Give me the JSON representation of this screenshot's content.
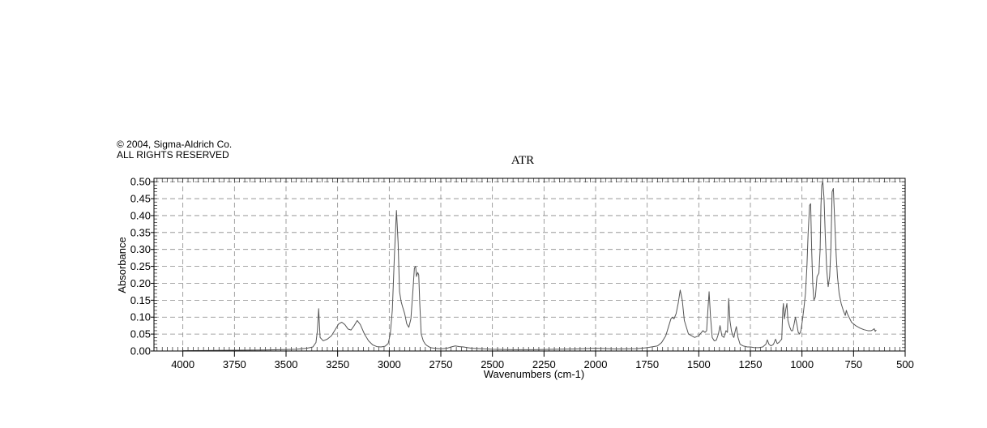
{
  "copyright": {
    "line1": "© 2004, Sigma-Aldrich Co.",
    "line2": "ALL RIGHTS RESERVED"
  },
  "chart_data": {
    "type": "line",
    "title": "ATR",
    "xlabel": "Wavenumbers (cm-1)",
    "ylabel": "Absorbance",
    "xlim": [
      4140,
      500
    ],
    "ylim": [
      0,
      0.51
    ],
    "x_reversed": true,
    "grid": true,
    "x_ticks": [
      4000,
      3750,
      3500,
      3250,
      3000,
      2750,
      2500,
      2250,
      2000,
      1750,
      1500,
      1250,
      1000,
      750,
      500
    ],
    "x_tick_labels": [
      "4000",
      "3750",
      "3500",
      "3250",
      "3000",
      "2750",
      "2500",
      "2250",
      "2000",
      "1750",
      "1500",
      "1250",
      "1000",
      "750",
      "500"
    ],
    "y_ticks": [
      0,
      0.05,
      0.1,
      0.15,
      0.2,
      0.25,
      0.3,
      0.35,
      0.4,
      0.45,
      0.5
    ],
    "y_tick_labels": [
      "0.00",
      "0.05",
      "0.10",
      "0.15",
      "0.20",
      "0.25",
      "0.30",
      "0.35",
      "0.40",
      "0.45",
      "0.50"
    ],
    "line_color": "#555555",
    "series": [
      {
        "x": [
          4000,
          3800,
          3600,
          3450,
          3400,
          3370,
          3355,
          3348,
          3342,
          3335,
          3320,
          3300,
          3280,
          3260,
          3245,
          3230,
          3215,
          3200,
          3185,
          3170,
          3155,
          3140,
          3120,
          3100,
          3080,
          3060,
          3040,
          3020,
          3005,
          2995,
          2985,
          2975,
          2965,
          2957,
          2950,
          2942,
          2935,
          2925,
          2915,
          2905,
          2895,
          2885,
          2878,
          2872,
          2868,
          2862,
          2857,
          2852,
          2845,
          2835,
          2825,
          2815,
          2800,
          2780,
          2760,
          2740,
          2720,
          2700,
          2680,
          2660,
          2640,
          2620,
          2600,
          2500,
          2400,
          2300,
          2200,
          2100,
          2000,
          1900,
          1800,
          1750,
          1700,
          1680,
          1660,
          1645,
          1635,
          1628,
          1620,
          1610,
          1600,
          1590,
          1580,
          1570,
          1550,
          1520,
          1500,
          1480,
          1470,
          1462,
          1456,
          1450,
          1443,
          1435,
          1425,
          1415,
          1405,
          1397,
          1388,
          1378,
          1368,
          1361,
          1355,
          1349,
          1342,
          1335,
          1330,
          1325,
          1318,
          1310,
          1300,
          1285,
          1265,
          1250,
          1230,
          1210,
          1190,
          1175,
          1168,
          1160,
          1150,
          1138,
          1128,
          1120,
          1112,
          1105,
          1098,
          1093,
          1090,
          1085,
          1078,
          1073,
          1068,
          1060,
          1052,
          1045,
          1038,
          1032,
          1025,
          1018,
          1012,
          1005,
          998,
          990,
          983,
          976,
          970,
          963,
          958,
          953,
          948,
          942,
          935,
          927,
          918,
          912,
          908,
          904,
          899,
          893,
          887,
          880,
          873,
          866,
          860,
          854,
          848,
          841,
          834,
          828,
          820,
          810,
          800,
          790,
          785,
          780,
          772,
          760,
          740,
          720,
          700,
          680,
          665,
          655,
          650,
          645,
          640
        ],
        "y": [
          0.001,
          0.002,
          0.003,
          0.005,
          0.008,
          0.012,
          0.025,
          0.06,
          0.125,
          0.04,
          0.03,
          0.035,
          0.045,
          0.065,
          0.08,
          0.085,
          0.078,
          0.065,
          0.062,
          0.075,
          0.09,
          0.078,
          0.05,
          0.03,
          0.018,
          0.013,
          0.012,
          0.014,
          0.022,
          0.05,
          0.12,
          0.28,
          0.415,
          0.32,
          0.175,
          0.145,
          0.13,
          0.11,
          0.08,
          0.07,
          0.095,
          0.18,
          0.245,
          0.25,
          0.22,
          0.232,
          0.225,
          0.14,
          0.05,
          0.03,
          0.02,
          0.015,
          0.01,
          0.008,
          0.007,
          0.007,
          0.008,
          0.012,
          0.015,
          0.013,
          0.012,
          0.01,
          0.008,
          0.005,
          0.004,
          0.004,
          0.005,
          0.006,
          0.008,
          0.006,
          0.007,
          0.01,
          0.015,
          0.025,
          0.045,
          0.075,
          0.095,
          0.1,
          0.095,
          0.11,
          0.14,
          0.18,
          0.15,
          0.09,
          0.05,
          0.04,
          0.045,
          0.06,
          0.055,
          0.06,
          0.12,
          0.175,
          0.1,
          0.04,
          0.03,
          0.032,
          0.05,
          0.075,
          0.045,
          0.04,
          0.06,
          0.055,
          0.155,
          0.09,
          0.06,
          0.045,
          0.04,
          0.055,
          0.072,
          0.04,
          0.02,
          0.015,
          0.012,
          0.012,
          0.01,
          0.01,
          0.012,
          0.02,
          0.033,
          0.02,
          0.015,
          0.02,
          0.035,
          0.022,
          0.025,
          0.03,
          0.035,
          0.12,
          0.14,
          0.095,
          0.125,
          0.14,
          0.09,
          0.072,
          0.06,
          0.06,
          0.08,
          0.1,
          0.08,
          0.055,
          0.05,
          0.06,
          0.09,
          0.13,
          0.17,
          0.25,
          0.35,
          0.43,
          0.435,
          0.3,
          0.2,
          0.15,
          0.16,
          0.22,
          0.23,
          0.3,
          0.43,
          0.49,
          0.5,
          0.45,
          0.34,
          0.24,
          0.19,
          0.22,
          0.3,
          0.47,
          0.48,
          0.38,
          0.28,
          0.22,
          0.17,
          0.14,
          0.12,
          0.105,
          0.12,
          0.11,
          0.1,
          0.085,
          0.075,
          0.068,
          0.063,
          0.06,
          0.06,
          0.063,
          0.066,
          0.058,
          0.062
        ]
      }
    ]
  }
}
